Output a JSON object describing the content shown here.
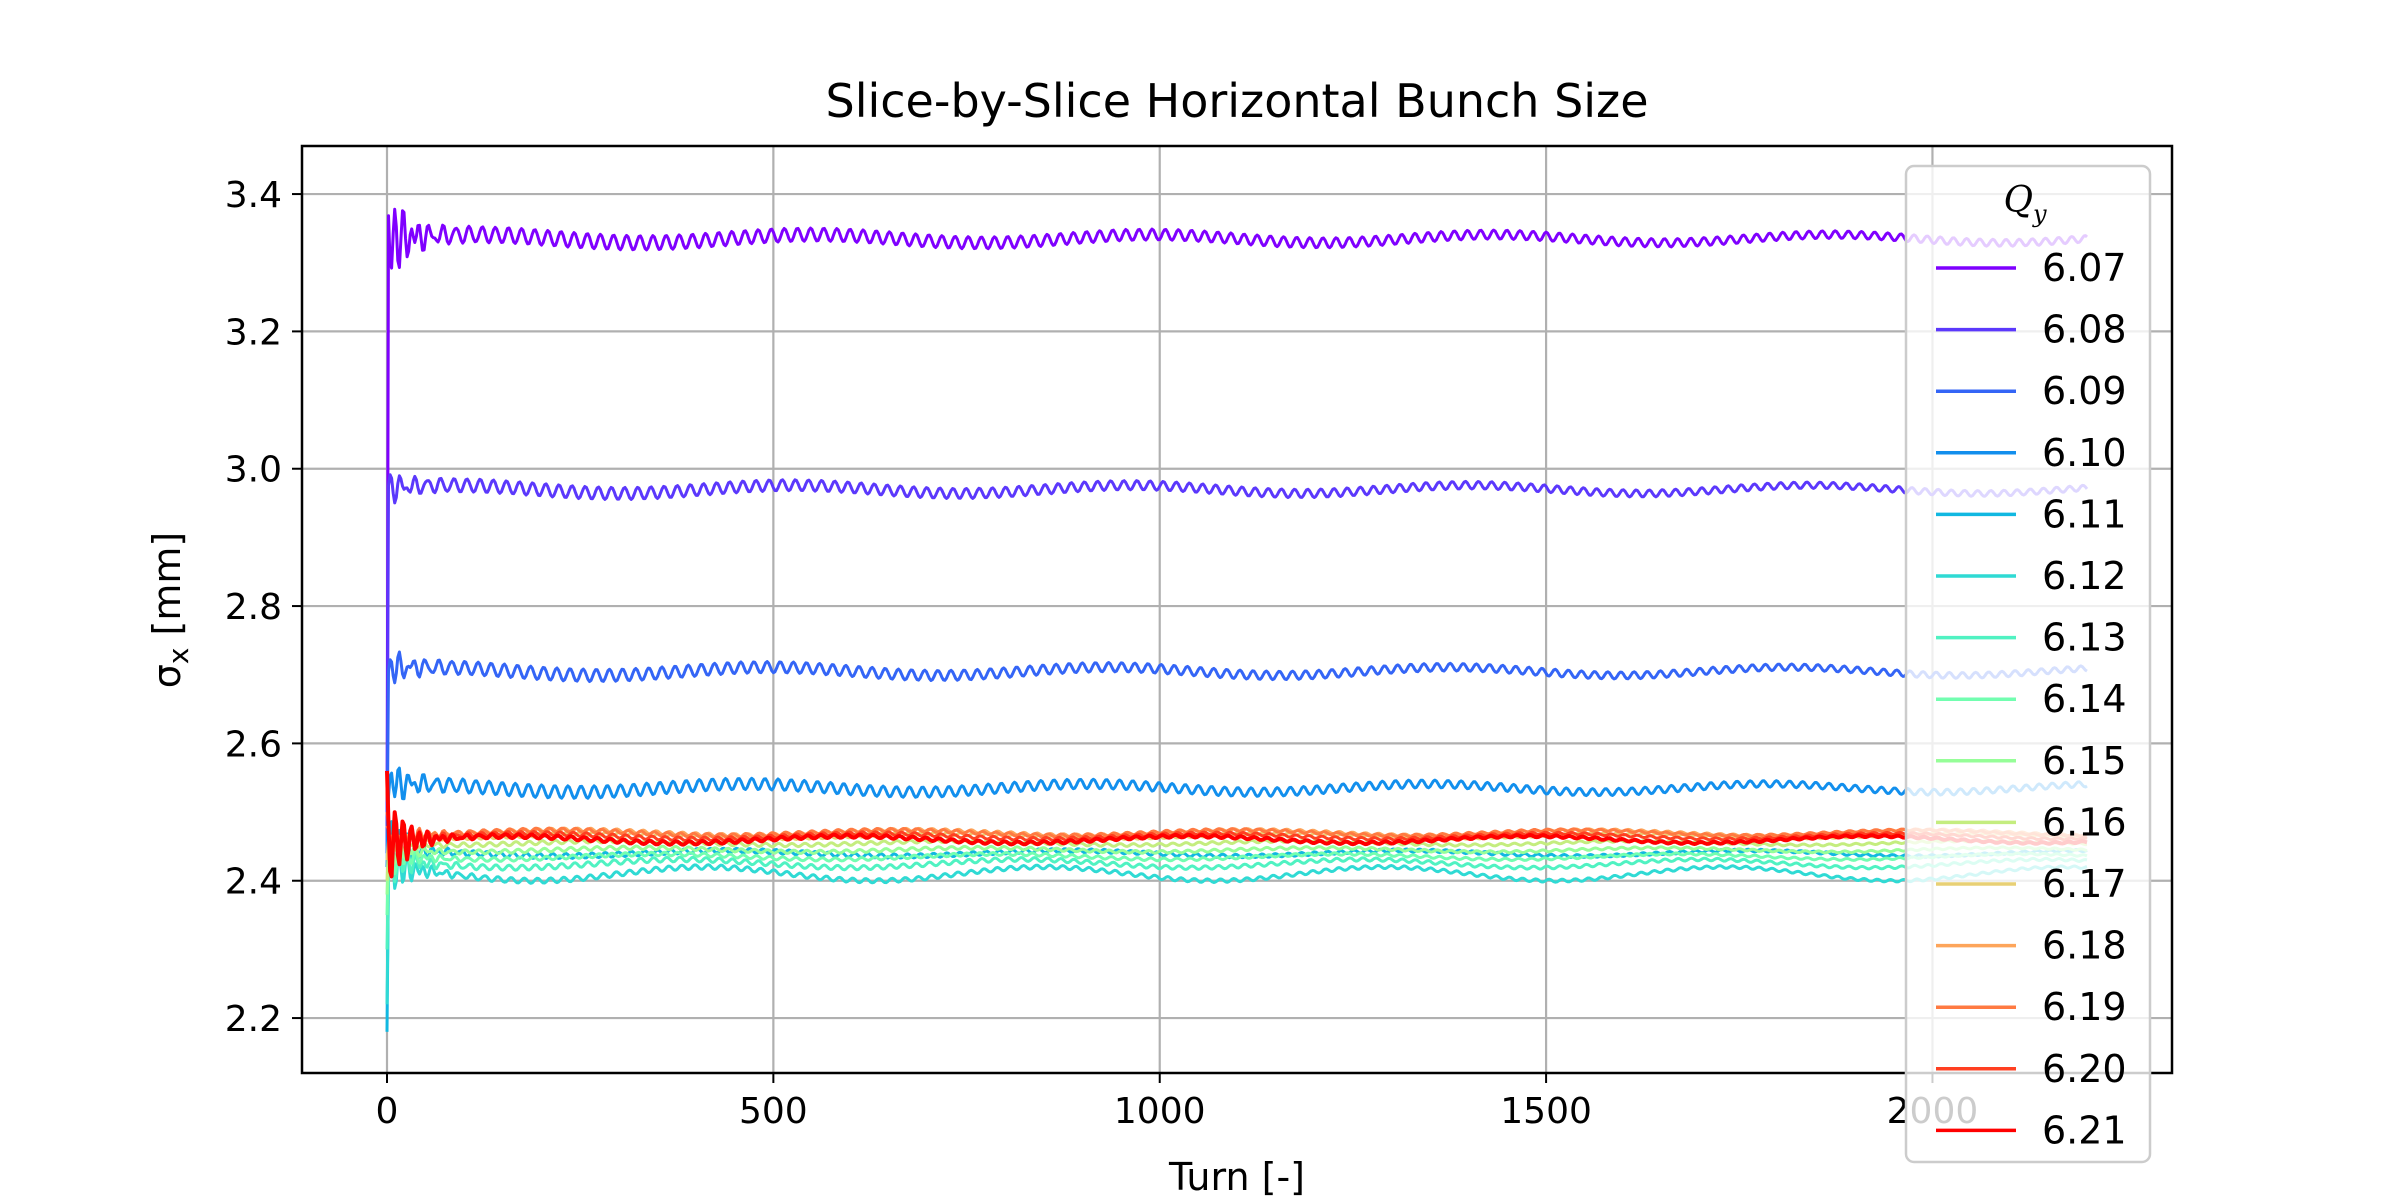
{
  "chart_data": {
    "type": "line",
    "title": "Slice-by-Slice Horizontal Bunch Size",
    "xlabel": "Turn [-]",
    "ylabel_symbol": "σ",
    "ylabel_sub": "x",
    "ylabel_rest": " [mm]",
    "xlim": [
      -110,
      2310
    ],
    "ylim": [
      2.12,
      3.47
    ],
    "xticks": [
      0,
      500,
      1000,
      1500,
      2000
    ],
    "yticks": [
      2.2,
      2.4,
      2.6,
      2.8,
      3.0,
      3.2,
      3.4
    ],
    "xtick_labels": [
      "0",
      "500",
      "1000",
      "1500",
      "2000"
    ],
    "ytick_labels": [
      "2.2",
      "2.4",
      "2.6",
      "2.8",
      "3.0",
      "3.2",
      "3.4"
    ],
    "grid": true,
    "legend": {
      "title": "Q",
      "title_sub": "y",
      "placement": "right-edge"
    },
    "x_max_turn": 2200,
    "series": [
      {
        "name": "6.07",
        "color": "#7f00ff",
        "start": 2.45,
        "peak": 3.41,
        "mean": 3.335,
        "amp": 0.012,
        "drift": 0.006
      },
      {
        "name": "6.08",
        "color": "#5b38fc",
        "start": 2.45,
        "peak": 2.95,
        "mean": 2.97,
        "amp": 0.01,
        "drift": 0.006
      },
      {
        "name": "6.09",
        "color": "#3465f6",
        "start": 2.44,
        "peak": 2.68,
        "mean": 2.705,
        "amp": 0.01,
        "drift": 0.006
      },
      {
        "name": "6.10",
        "color": "#128fed",
        "start": 2.42,
        "peak": 2.5,
        "mean": 2.535,
        "amp": 0.01,
        "drift": 0.006
      },
      {
        "name": "6.11",
        "color": "#11b8e1",
        "start": 2.18,
        "peak": 2.38,
        "mean": 2.44,
        "amp": 0.004,
        "drift": 0.004
      },
      {
        "name": "6.12",
        "color": "#2fdad4",
        "start": 2.22,
        "peak": 2.36,
        "mean": 2.41,
        "amp": 0.004,
        "drift": 0.01
      },
      {
        "name": "6.13",
        "color": "#50f2c2",
        "start": 2.3,
        "peak": 2.38,
        "mean": 2.425,
        "amp": 0.004,
        "drift": 0.006
      },
      {
        "name": "6.14",
        "color": "#72feb0",
        "start": 2.35,
        "peak": 2.4,
        "mean": 2.435,
        "amp": 0.003,
        "drift": 0.004
      },
      {
        "name": "6.15",
        "color": "#96fe98",
        "start": 2.38,
        "peak": 2.42,
        "mean": 2.445,
        "amp": 0.003,
        "drift": 0.003
      },
      {
        "name": "6.16",
        "color": "#c4ed7f",
        "start": 2.4,
        "peak": 2.44,
        "mean": 2.455,
        "amp": 0.003,
        "drift": 0.003
      },
      {
        "name": "6.17",
        "color": "#e8d075",
        "start": 2.43,
        "peak": 2.46,
        "mean": 2.465,
        "amp": 0.003,
        "drift": 0.003
      },
      {
        "name": "6.18",
        "color": "#fda55b",
        "start": 2.48,
        "peak": 2.5,
        "mean": 2.47,
        "amp": 0.003,
        "drift": 0.004
      },
      {
        "name": "6.19",
        "color": "#ff7a42",
        "start": 2.5,
        "peak": 2.51,
        "mean": 2.47,
        "amp": 0.003,
        "drift": 0.004
      },
      {
        "name": "6.20",
        "color": "#ff3f21",
        "start": 2.53,
        "peak": 2.52,
        "mean": 2.465,
        "amp": 0.003,
        "drift": 0.004
      },
      {
        "name": "6.21",
        "color": "#ff0000",
        "start": 2.56,
        "peak": 2.53,
        "mean": 2.46,
        "amp": 0.003,
        "drift": 0.005
      }
    ]
  }
}
